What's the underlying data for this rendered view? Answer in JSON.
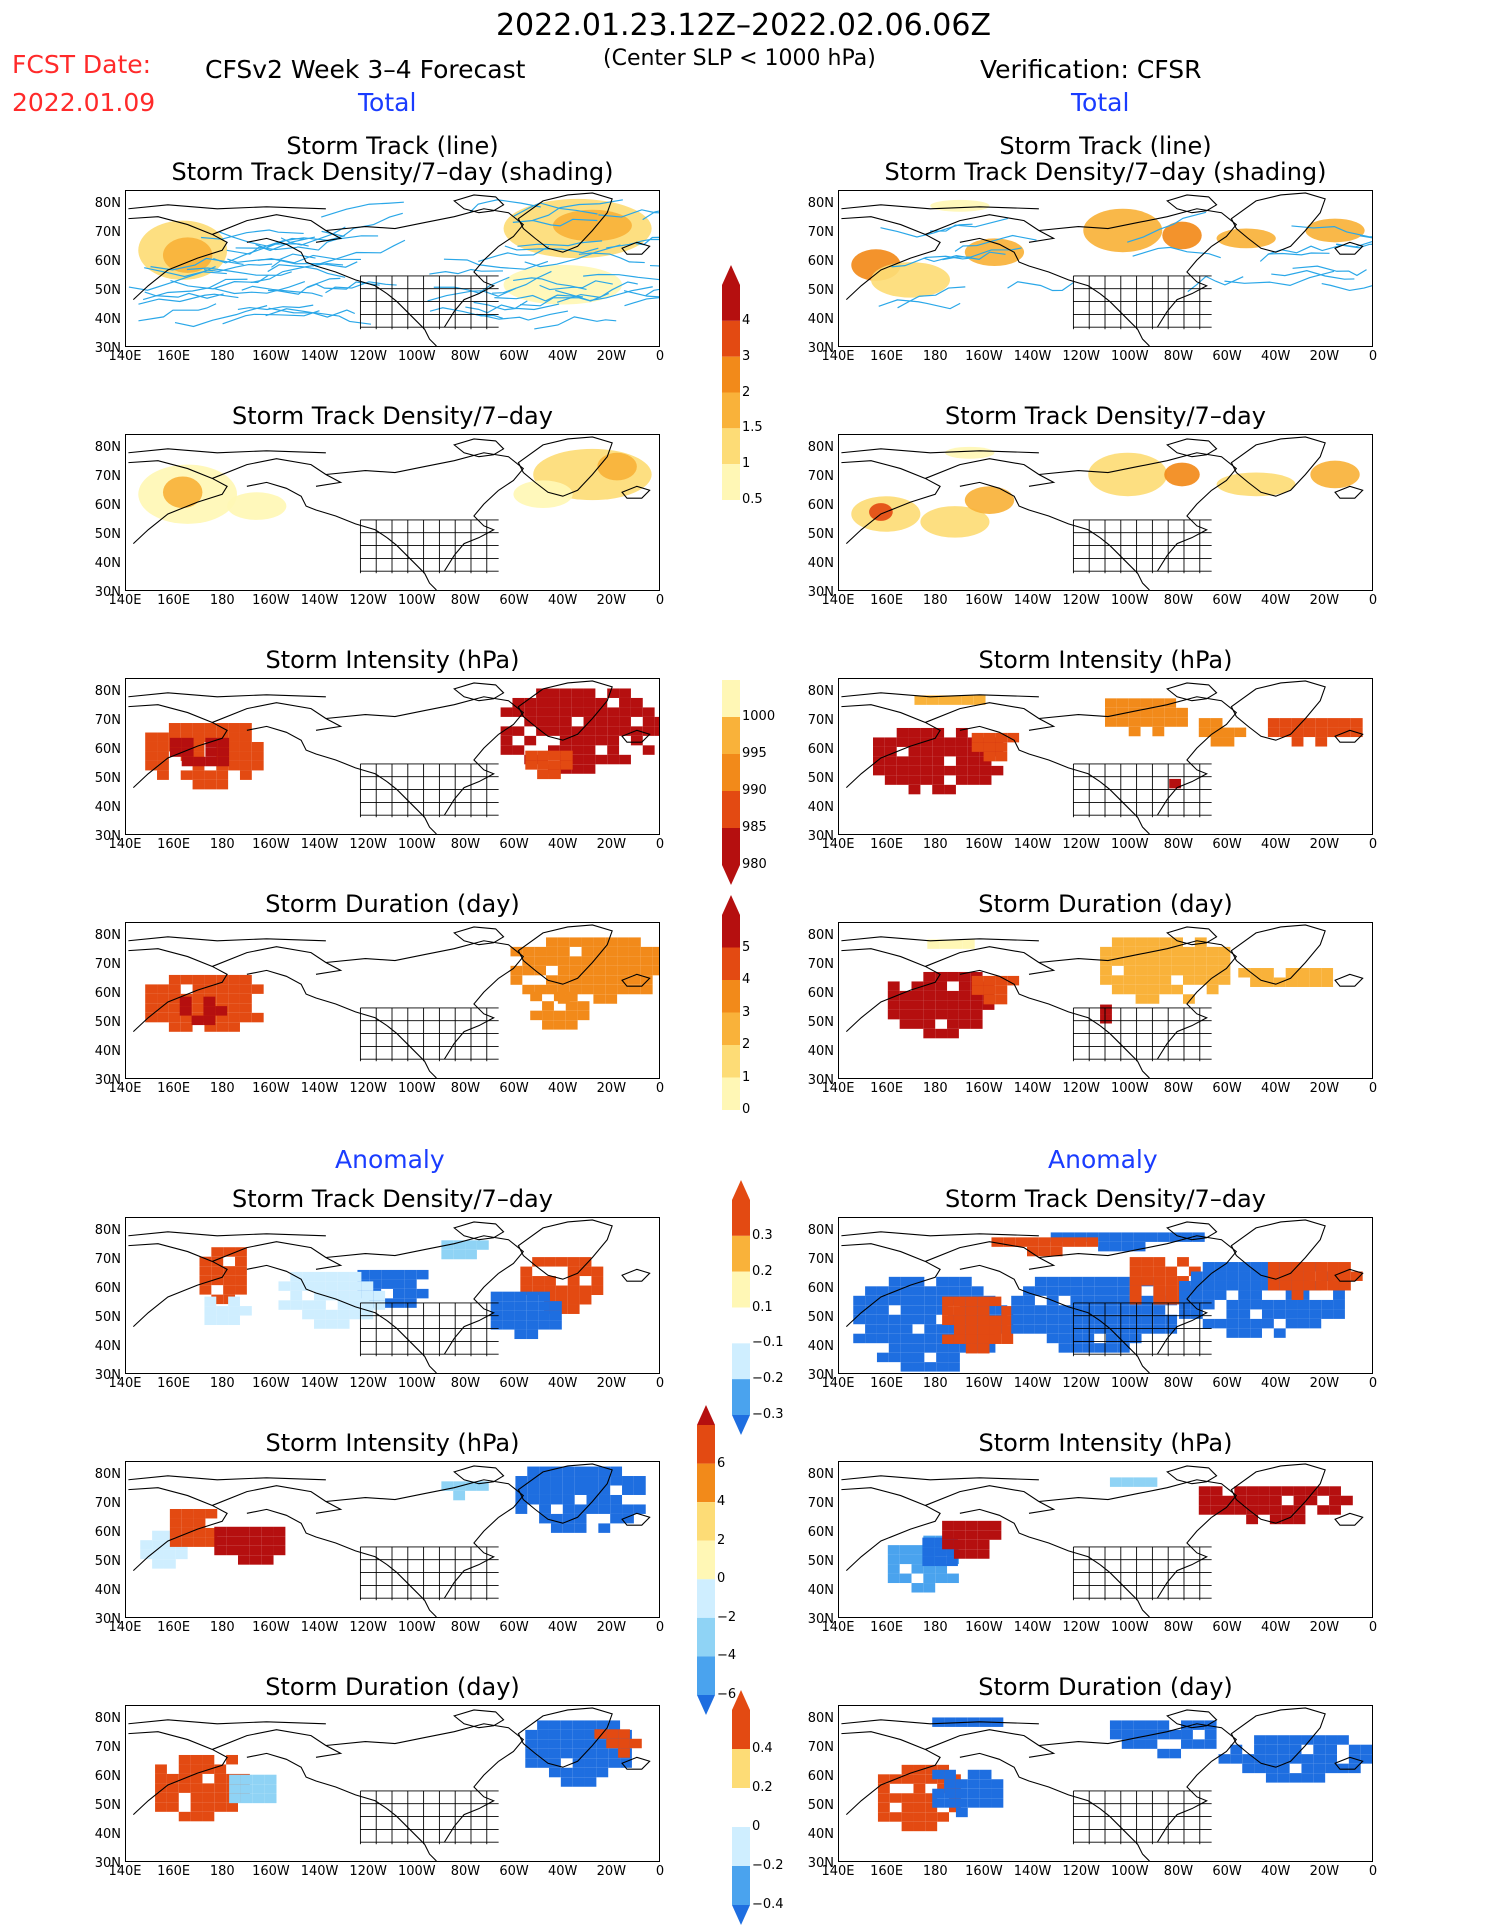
{
  "header": {
    "date_range": "2022.01.23.12Z–2022.02.06.06Z",
    "fcst_label": "FCST Date:",
    "fcst_date": "2022.01.09",
    "model_title": "CFSv2 Week 3–4 Forecast",
    "criterion": "(Center SLP < 1000 hPa)",
    "verification": "Verification: CFSR"
  },
  "sections": {
    "total_left": "Total",
    "total_right": "Total",
    "anomaly_left": "Anomaly",
    "anomaly_right": "Anomaly"
  },
  "panel_titles": {
    "track_line": "Storm Track (line)",
    "track_shading": "Storm Track Density/7–day (shading)",
    "density": "Storm Track Density/7–day",
    "intensity": "Storm Intensity (hPa)",
    "duration": "Storm Duration (day)"
  },
  "axes": {
    "lat_ticks": [
      "80N",
      "70N",
      "60N",
      "50N",
      "40N",
      "30N"
    ],
    "lon_ticks": [
      "140E",
      "160E",
      "180",
      "160W",
      "140W",
      "120W",
      "100W",
      "80W",
      "60W",
      "40W",
      "20W",
      "0"
    ]
  },
  "colorbars": {
    "density_total": [
      "4",
      "3",
      "2",
      "1.5",
      "1",
      "0.5"
    ],
    "intensity_total": [
      "1000",
      "995",
      "990",
      "985",
      "980"
    ],
    "duration_total": [
      "5",
      "4",
      "3",
      "2",
      "1",
      "0"
    ],
    "density_anom": [
      "0.3",
      "0.2",
      "0.1",
      "−0.1",
      "−0.2",
      "−0.3"
    ],
    "intensity_anom": [
      "6",
      "4",
      "2",
      "0",
      "−2",
      "−4",
      "−6"
    ],
    "duration_anom": [
      "0.4",
      "0.2",
      "0",
      "−0.2",
      "−0.4"
    ]
  },
  "colors": {
    "warm": [
      "#fff7b5",
      "#fddc76",
      "#f9b23a",
      "#f28a1a",
      "#e34a12",
      "#b50f0f"
    ],
    "cold": [
      "#cfeeff",
      "#8fd3f5",
      "#4aa3ee",
      "#1e6ee0"
    ],
    "track_line": "#2aa7e8",
    "header_red": "#ff2a2a",
    "header_blue": "#1a3cff"
  }
}
